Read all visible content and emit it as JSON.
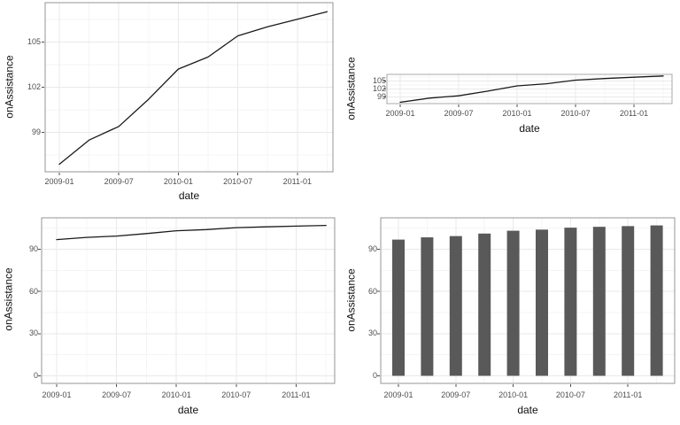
{
  "figure": {
    "background": "#ffffff",
    "description": "2x2 grid of plots of onAssistance over date"
  },
  "style": {
    "line_color": "#1a1a1a",
    "bar_fill": "#595959",
    "grid_major": "#e9e9e9",
    "grid_minor": "#f5f5f5",
    "panel_border": "#949494",
    "panel_border_light": "#a8a8a8",
    "tick_mark_color": "#4d4d4d",
    "tick_text_color": "#4d4d4d",
    "axis_title_color": "#101010",
    "panel_background": "#ffffff"
  },
  "chart_data": [
    {
      "id": "line-full",
      "type": "line",
      "title": "",
      "xlabel": "date",
      "ylabel": "onAssistance",
      "x": [
        "2009-01",
        "2009-04",
        "2009-07",
        "2009-10",
        "2010-01",
        "2010-04",
        "2010-07",
        "2010-10",
        "2011-01",
        "2011-04"
      ],
      "values": [
        96.9,
        98.5,
        99.4,
        101.2,
        103.2,
        104.0,
        105.4,
        106.0,
        106.5,
        107.0
      ],
      "x_tick_labels": [
        "2009-01",
        "2009-07",
        "2010-01",
        "2010-07",
        "2011-01"
      ],
      "y_ticks": [
        99,
        102,
        105
      ],
      "y_tick_labels": [
        "99",
        "102",
        "105"
      ],
      "ylim": [
        96.4,
        107.6
      ],
      "grid": "major+minor",
      "legend": "none"
    },
    {
      "id": "line-compressed",
      "type": "line",
      "title": "",
      "xlabel": "date",
      "ylabel": "onAssistance",
      "x": [
        "2009-01",
        "2009-04",
        "2009-07",
        "2009-10",
        "2010-01",
        "2010-04",
        "2010-07",
        "2010-10",
        "2011-01",
        "2011-04"
      ],
      "values": [
        96.9,
        98.5,
        99.4,
        101.2,
        103.2,
        104.0,
        105.4,
        106.0,
        106.5,
        107.0
      ],
      "x_tick_labels": [
        "2009-01",
        "2009-07",
        "2010-01",
        "2010-07",
        "2011-01"
      ],
      "y_ticks": [
        99,
        102,
        105
      ],
      "y_tick_labels": [
        "99",
        "102",
        "105"
      ],
      "ylim": [
        96.4,
        107.6
      ],
      "grid": "major+minor",
      "legend": "none"
    },
    {
      "id": "line-zero-baseline",
      "type": "line",
      "title": "",
      "xlabel": "date",
      "ylabel": "onAssistance",
      "x": [
        "2009-01",
        "2009-04",
        "2009-07",
        "2009-10",
        "2010-01",
        "2010-04",
        "2010-07",
        "2010-10",
        "2011-01",
        "2011-04"
      ],
      "values": [
        96.9,
        98.5,
        99.4,
        101.2,
        103.2,
        104.0,
        105.4,
        106.0,
        106.5,
        107.0
      ],
      "x_tick_labels": [
        "2009-01",
        "2009-07",
        "2010-01",
        "2010-07",
        "2011-01"
      ],
      "y_ticks": [
        0,
        30,
        60,
        90
      ],
      "y_tick_labels": [
        "0",
        "30",
        "60",
        "90"
      ],
      "ylim": [
        -5.4,
        112.4
      ],
      "grid": "major+minor",
      "legend": "none"
    },
    {
      "id": "bar",
      "type": "bar",
      "title": "",
      "xlabel": "date",
      "ylabel": "onAssistance",
      "categories": [
        "2009-01",
        "2009-04",
        "2009-07",
        "2009-10",
        "2010-01",
        "2010-04",
        "2010-07",
        "2010-10",
        "2011-01",
        "2011-04"
      ],
      "values": [
        96.9,
        98.5,
        99.4,
        101.2,
        103.2,
        104.0,
        105.4,
        106.0,
        106.5,
        107.0
      ],
      "x_tick_labels": [
        "2009-01",
        "2009-07",
        "2010-01",
        "2010-07",
        "2011-01"
      ],
      "y_ticks": [
        0,
        30,
        60,
        90
      ],
      "y_tick_labels": [
        "0",
        "30",
        "60",
        "90"
      ],
      "ylim": [
        -5.4,
        112.4
      ],
      "grid": "major+minor",
      "legend": "none"
    }
  ]
}
